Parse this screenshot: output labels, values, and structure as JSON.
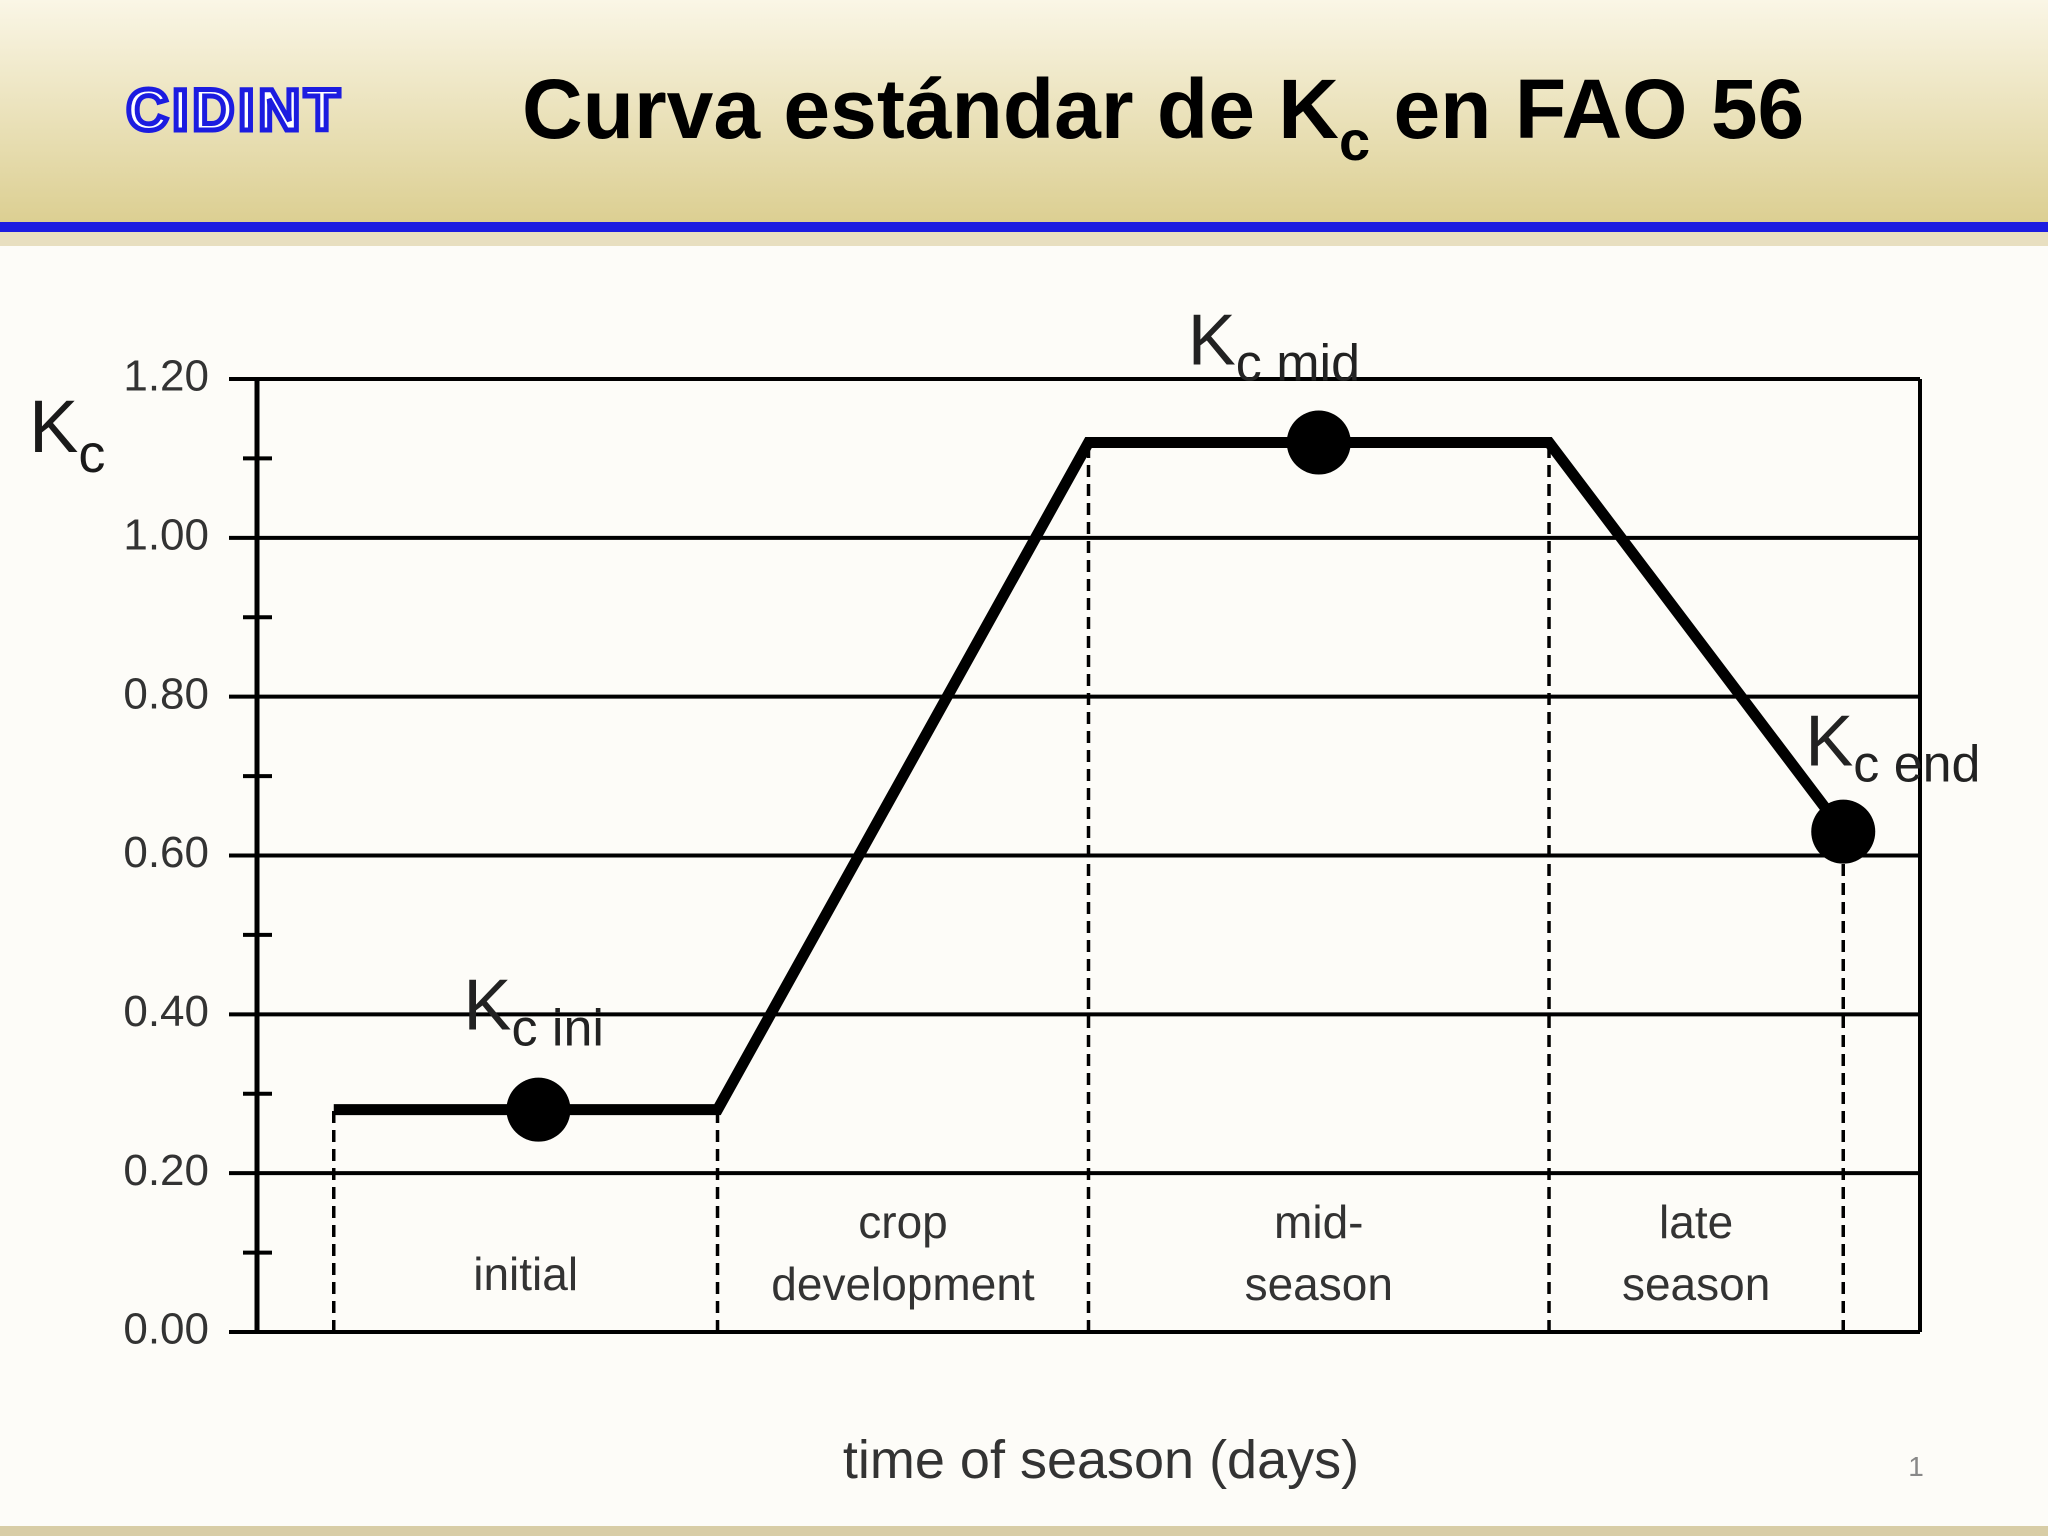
{
  "header": {
    "logo": "CIDINT",
    "title_pre": "Curva estándar de K",
    "title_sub": "c",
    "title_post": " en FAO 56"
  },
  "chart_data": {
    "type": "line",
    "ylabel_main": "K",
    "ylabel_sub": "c",
    "xlabel": "time of season (days)",
    "xlim": [
      0,
      130
    ],
    "ylim": [
      0,
      1.2
    ],
    "yticks": [
      {
        "value": 0,
        "label": "0.00"
      },
      {
        "value": 0.2,
        "label": "0.20"
      },
      {
        "value": 0.4,
        "label": "0.40"
      },
      {
        "value": 0.6,
        "label": "0.60"
      },
      {
        "value": 0.8,
        "label": "0.80"
      },
      {
        "value": 1,
        "label": "1.00"
      },
      {
        "value": 1.2,
        "label": "1.20"
      }
    ],
    "yminorticks": [
      0.1,
      0.3,
      0.5,
      0.7,
      0.9,
      1.1
    ],
    "grid": true,
    "color": "#000000",
    "x": [
      6,
      36,
      65,
      101,
      124
    ],
    "values": [
      0.28,
      0.28,
      1.12,
      1.12,
      0.63
    ],
    "stages": [
      [
        "initial"
      ],
      [
        "crop",
        "development"
      ],
      [
        "mid-",
        "season"
      ],
      [
        "late",
        "season"
      ]
    ],
    "points": [
      {
        "label_main": "K",
        "label_sub": "c ini",
        "x": 22,
        "y": 0.28
      },
      {
        "label_main": "K",
        "label_sub": "c mid",
        "x": 83,
        "y": 1.12
      },
      {
        "label_main": "K",
        "label_sub": "c end",
        "x": 124,
        "y": 0.63
      }
    ]
  },
  "page_number": "1"
}
